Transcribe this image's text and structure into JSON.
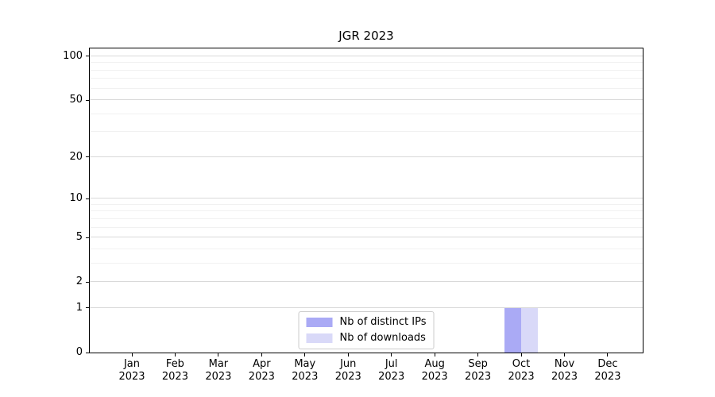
{
  "chart_data": {
    "type": "bar",
    "title": "JGR 2023",
    "categories": [
      "Jan 2023",
      "Feb 2023",
      "Mar 2023",
      "Apr 2023",
      "May 2023",
      "Jun 2023",
      "Jul 2023",
      "Aug 2023",
      "Sep 2023",
      "Oct 2023",
      "Nov 2023",
      "Dec 2023"
    ],
    "series": [
      {
        "name": "Nb of distinct IPs",
        "color": "#aaaaf5",
        "values": [
          0,
          0,
          0,
          0,
          0,
          0,
          0,
          0,
          0,
          1,
          0,
          0
        ]
      },
      {
        "name": "Nb of downloads",
        "color": "#d9d9f8",
        "values": [
          0,
          0,
          0,
          0,
          0,
          0,
          0,
          0,
          0,
          1,
          0,
          0
        ]
      }
    ],
    "xlabel": "",
    "ylabel": "",
    "yscale": "log1p",
    "yticks": [
      0,
      1,
      2,
      5,
      10,
      20,
      50,
      100
    ],
    "minor_yticks": [
      3,
      4,
      6,
      7,
      8,
      9,
      30,
      40,
      60,
      70,
      80,
      90
    ],
    "ymax": 113,
    "grid": "horizontal",
    "legend_position": "lower center inside"
  }
}
